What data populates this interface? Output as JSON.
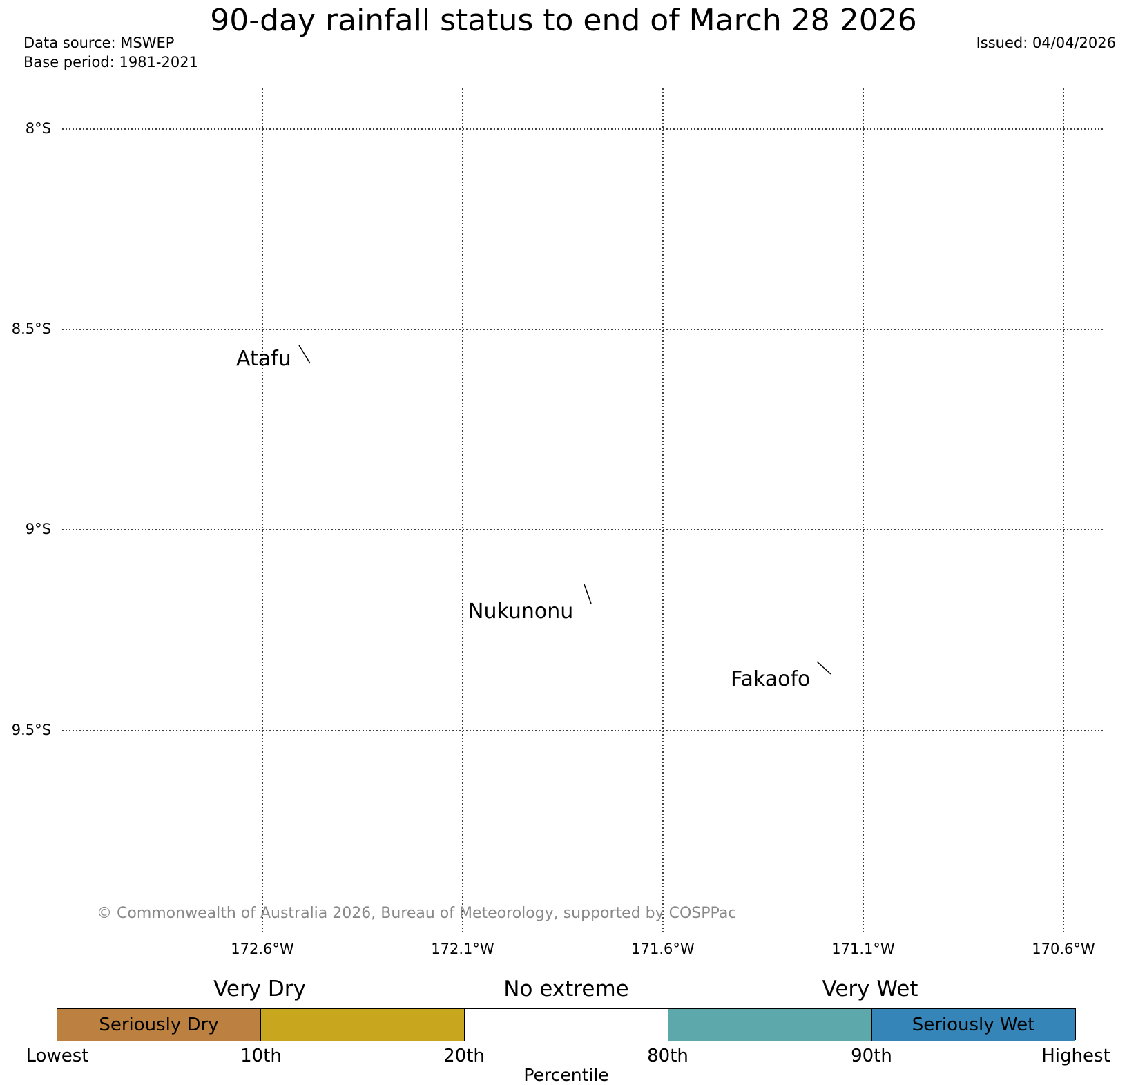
{
  "title": "90-day rainfall status to end of March 28 2026",
  "data_source": "Data source: MSWEP",
  "base_period": "Base period: 1981-2021",
  "issued": "Issued: 04/04/2026",
  "lat_labels": [
    "8°S",
    "8.5°S",
    "9°S",
    "9.5°S"
  ],
  "lon_labels": [
    "172.6°W",
    "172.1°W",
    "171.6°W",
    "171.1°W",
    "170.6°W"
  ],
  "islands": [
    {
      "name": "Atafu"
    },
    {
      "name": "Nukunonu"
    },
    {
      "name": "Fakaofo"
    }
  ],
  "credit": "© Commonwealth of Australia 2026, Bureau of Meteorology, supported by COSPPac",
  "legend": {
    "categories": [
      "Very Dry",
      "No extreme",
      "Very Wet"
    ],
    "segments": [
      {
        "label": "Seriously Dry",
        "color": "#bc8040"
      },
      {
        "label": "",
        "color": "#c8a61e"
      },
      {
        "label": "",
        "color": "#ffffff"
      },
      {
        "label": "",
        "color": "#5ca8aa"
      },
      {
        "label": "Seriously Wet",
        "color": "#3585b8"
      }
    ],
    "ticks": [
      "Lowest",
      "10th",
      "20th",
      "80th",
      "90th",
      "Highest"
    ],
    "axis_label": "Percentile"
  }
}
